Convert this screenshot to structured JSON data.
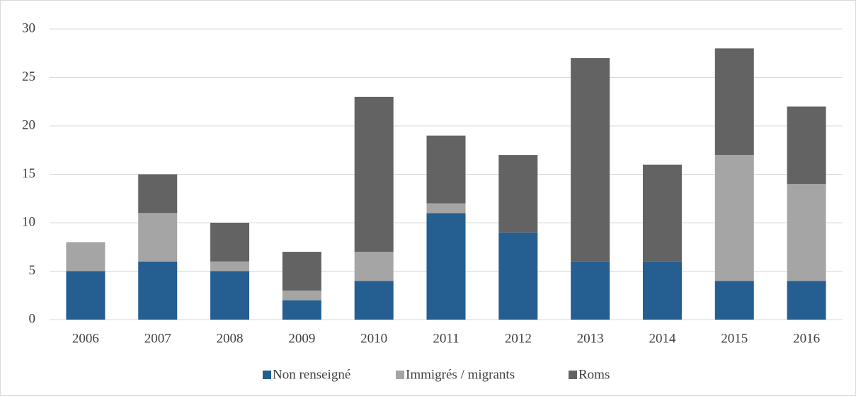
{
  "chart_data": {
    "type": "stacked_bar",
    "categories": [
      "2006",
      "2007",
      "2008",
      "2009",
      "2010",
      "2011",
      "2012",
      "2013",
      "2014",
      "2015",
      "2016"
    ],
    "series": [
      {
        "name": "Non renseigné",
        "color": "#255e91",
        "values": [
          5,
          6,
          5,
          2,
          4,
          11,
          9,
          6,
          6,
          4,
          4
        ]
      },
      {
        "name": "Immigrés / migrants",
        "color": "#a5a5a5",
        "values": [
          3,
          5,
          1,
          1,
          3,
          1,
          0,
          0,
          0,
          13,
          10
        ]
      },
      {
        "name": "Roms",
        "color": "#636363",
        "values": [
          0,
          4,
          4,
          4,
          16,
          7,
          8,
          21,
          10,
          11,
          8
        ]
      }
    ],
    "ylim": [
      0,
      30
    ],
    "yticks": [
      0,
      5,
      10,
      15,
      20,
      25,
      30
    ],
    "grid": true,
    "legend": "bottom"
  }
}
